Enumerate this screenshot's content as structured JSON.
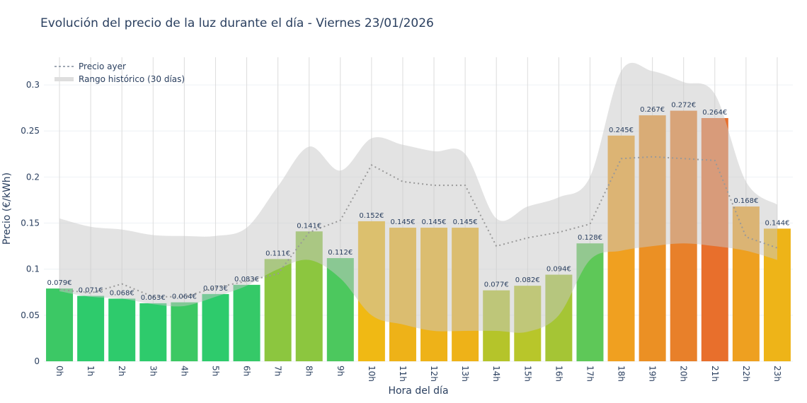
{
  "chart_data": {
    "type": "bar",
    "title": "Evolución del precio de la luz durante el día - Viernes 23/01/2026",
    "xlabel": "Hora del día",
    "ylabel": "Precio (€/kWh)",
    "ylim": [
      0,
      0.33
    ],
    "yticks": [
      0,
      0.05,
      0.1,
      0.15,
      0.2,
      0.25,
      0.3
    ],
    "ytick_labels": [
      "0",
      "0.05",
      "0.1",
      "0.15",
      "0.2",
      "0.25",
      "0.3"
    ],
    "grid": true,
    "legend_position": "top-left",
    "categories": [
      "0h",
      "1h",
      "2h",
      "3h",
      "4h",
      "5h",
      "6h",
      "7h",
      "8h",
      "9h",
      "10h",
      "11h",
      "12h",
      "13h",
      "14h",
      "15h",
      "16h",
      "17h",
      "18h",
      "19h",
      "20h",
      "21h",
      "22h",
      "23h"
    ],
    "values": [
      0.079,
      0.071,
      0.068,
      0.063,
      0.064,
      0.073,
      0.083,
      0.111,
      0.141,
      0.112,
      0.152,
      0.145,
      0.145,
      0.145,
      0.077,
      0.082,
      0.094,
      0.128,
      0.245,
      0.267,
      0.272,
      0.264,
      0.168,
      0.144
    ],
    "data_labels": [
      "0.079€",
      "0.071€",
      "0.068€",
      "0.063€",
      "0.064€",
      "0.073€",
      "0.083€",
      "0.111€",
      "0.141€",
      "0.112€",
      "0.152€",
      "0.145€",
      "0.145€",
      "0.145€",
      "0.077€",
      "0.082€",
      "0.094€",
      "0.128€",
      "0.245€",
      "0.267€",
      "0.272€",
      "0.264€",
      "0.168€",
      "0.144€"
    ],
    "bar_colors": [
      "#3cc865",
      "#2ecb6c",
      "#2ecb6c",
      "#2ecb6c",
      "#3cc863",
      "#2ecb6c",
      "#35c968",
      "#8cc63f",
      "#8cc63f",
      "#4cc85e",
      "#f0b914",
      "#eeb218",
      "#eeb218",
      "#eeb218",
      "#b5c42a",
      "#b8c62a",
      "#a5c535",
      "#5ec858",
      "#f0a020",
      "#eb9024",
      "#e8802a",
      "#e86f2c",
      "#eea020",
      "#eeb418"
    ],
    "series": [
      {
        "name": "Precio ayer",
        "type": "line",
        "style": "dotted",
        "color": "#999999",
        "values": [
          0.078,
          0.074,
          0.084,
          0.07,
          0.07,
          0.08,
          0.087,
          0.095,
          0.14,
          0.153,
          0.213,
          0.195,
          0.191,
          0.191,
          0.125,
          0.134,
          0.14,
          0.149,
          0.22,
          0.222,
          0.22,
          0.218,
          0.135,
          0.123
        ]
      },
      {
        "name": "Rango histórico (30 días)",
        "type": "band",
        "color": "#d9d9d9",
        "upper": [
          0.155,
          0.146,
          0.143,
          0.137,
          0.136,
          0.136,
          0.145,
          0.19,
          0.233,
          0.207,
          0.242,
          0.235,
          0.228,
          0.225,
          0.155,
          0.168,
          0.178,
          0.2,
          0.315,
          0.315,
          0.303,
          0.29,
          0.195,
          0.17
        ],
        "lower": [
          0.076,
          0.07,
          0.068,
          0.062,
          0.06,
          0.07,
          0.082,
          0.1,
          0.11,
          0.09,
          0.05,
          0.04,
          0.033,
          0.033,
          0.033,
          0.032,
          0.05,
          0.11,
          0.12,
          0.125,
          0.128,
          0.125,
          0.12,
          0.11
        ]
      }
    ]
  }
}
